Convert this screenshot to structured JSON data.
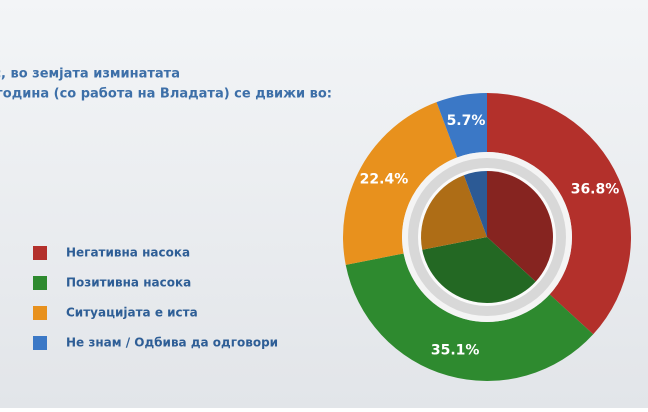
{
  "chart_data": {
    "type": "donut",
    "title": [
      "Според Вас, во земјата изминатата",
      "година (со работа на Владата) се движи во:"
    ],
    "categories": [
      "Негативна насока",
      "Позитивна насока",
      "Ситуацијата е иста",
      "Не знам / Одбива да одговори"
    ],
    "values": [
      36.8,
      35.1,
      22.4,
      5.7
    ],
    "value_labels": [
      "36.8%",
      "35.1%",
      "22.4%",
      "5.7%"
    ],
    "colors": [
      "#b3302b",
      "#2e8a2f",
      "#e8911d",
      "#3b78c6"
    ]
  }
}
